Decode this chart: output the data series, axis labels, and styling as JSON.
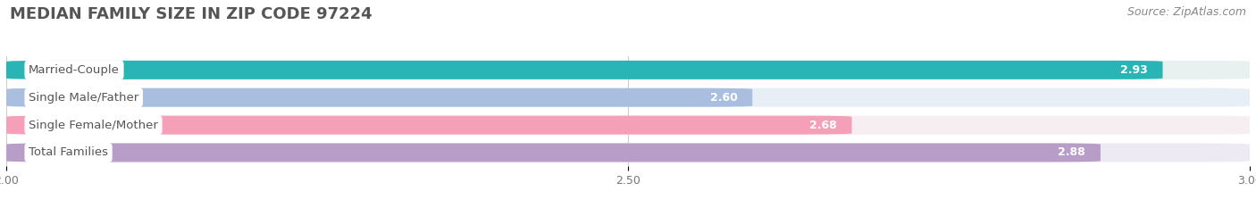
{
  "title": "MEDIAN FAMILY SIZE IN ZIP CODE 97224",
  "source": "Source: ZipAtlas.com",
  "categories": [
    "Married-Couple",
    "Single Male/Father",
    "Single Female/Mother",
    "Total Families"
  ],
  "values": [
    2.93,
    2.6,
    2.68,
    2.88
  ],
  "bar_colors": [
    "#29b4b6",
    "#aabfdf",
    "#f5a0b8",
    "#b89dc8"
  ],
  "bg_colors": [
    "#e8f0f0",
    "#e8eef5",
    "#f7eef2",
    "#eeeaf4"
  ],
  "xmin": 2.0,
  "xmax": 3.0,
  "xticks": [
    2.0,
    2.5,
    3.0
  ],
  "title_fontsize": 13,
  "source_fontsize": 9,
  "label_fontsize": 9.5,
  "value_fontsize": 9,
  "tick_fontsize": 9,
  "bar_height": 0.68,
  "figure_bg": "#ffffff"
}
